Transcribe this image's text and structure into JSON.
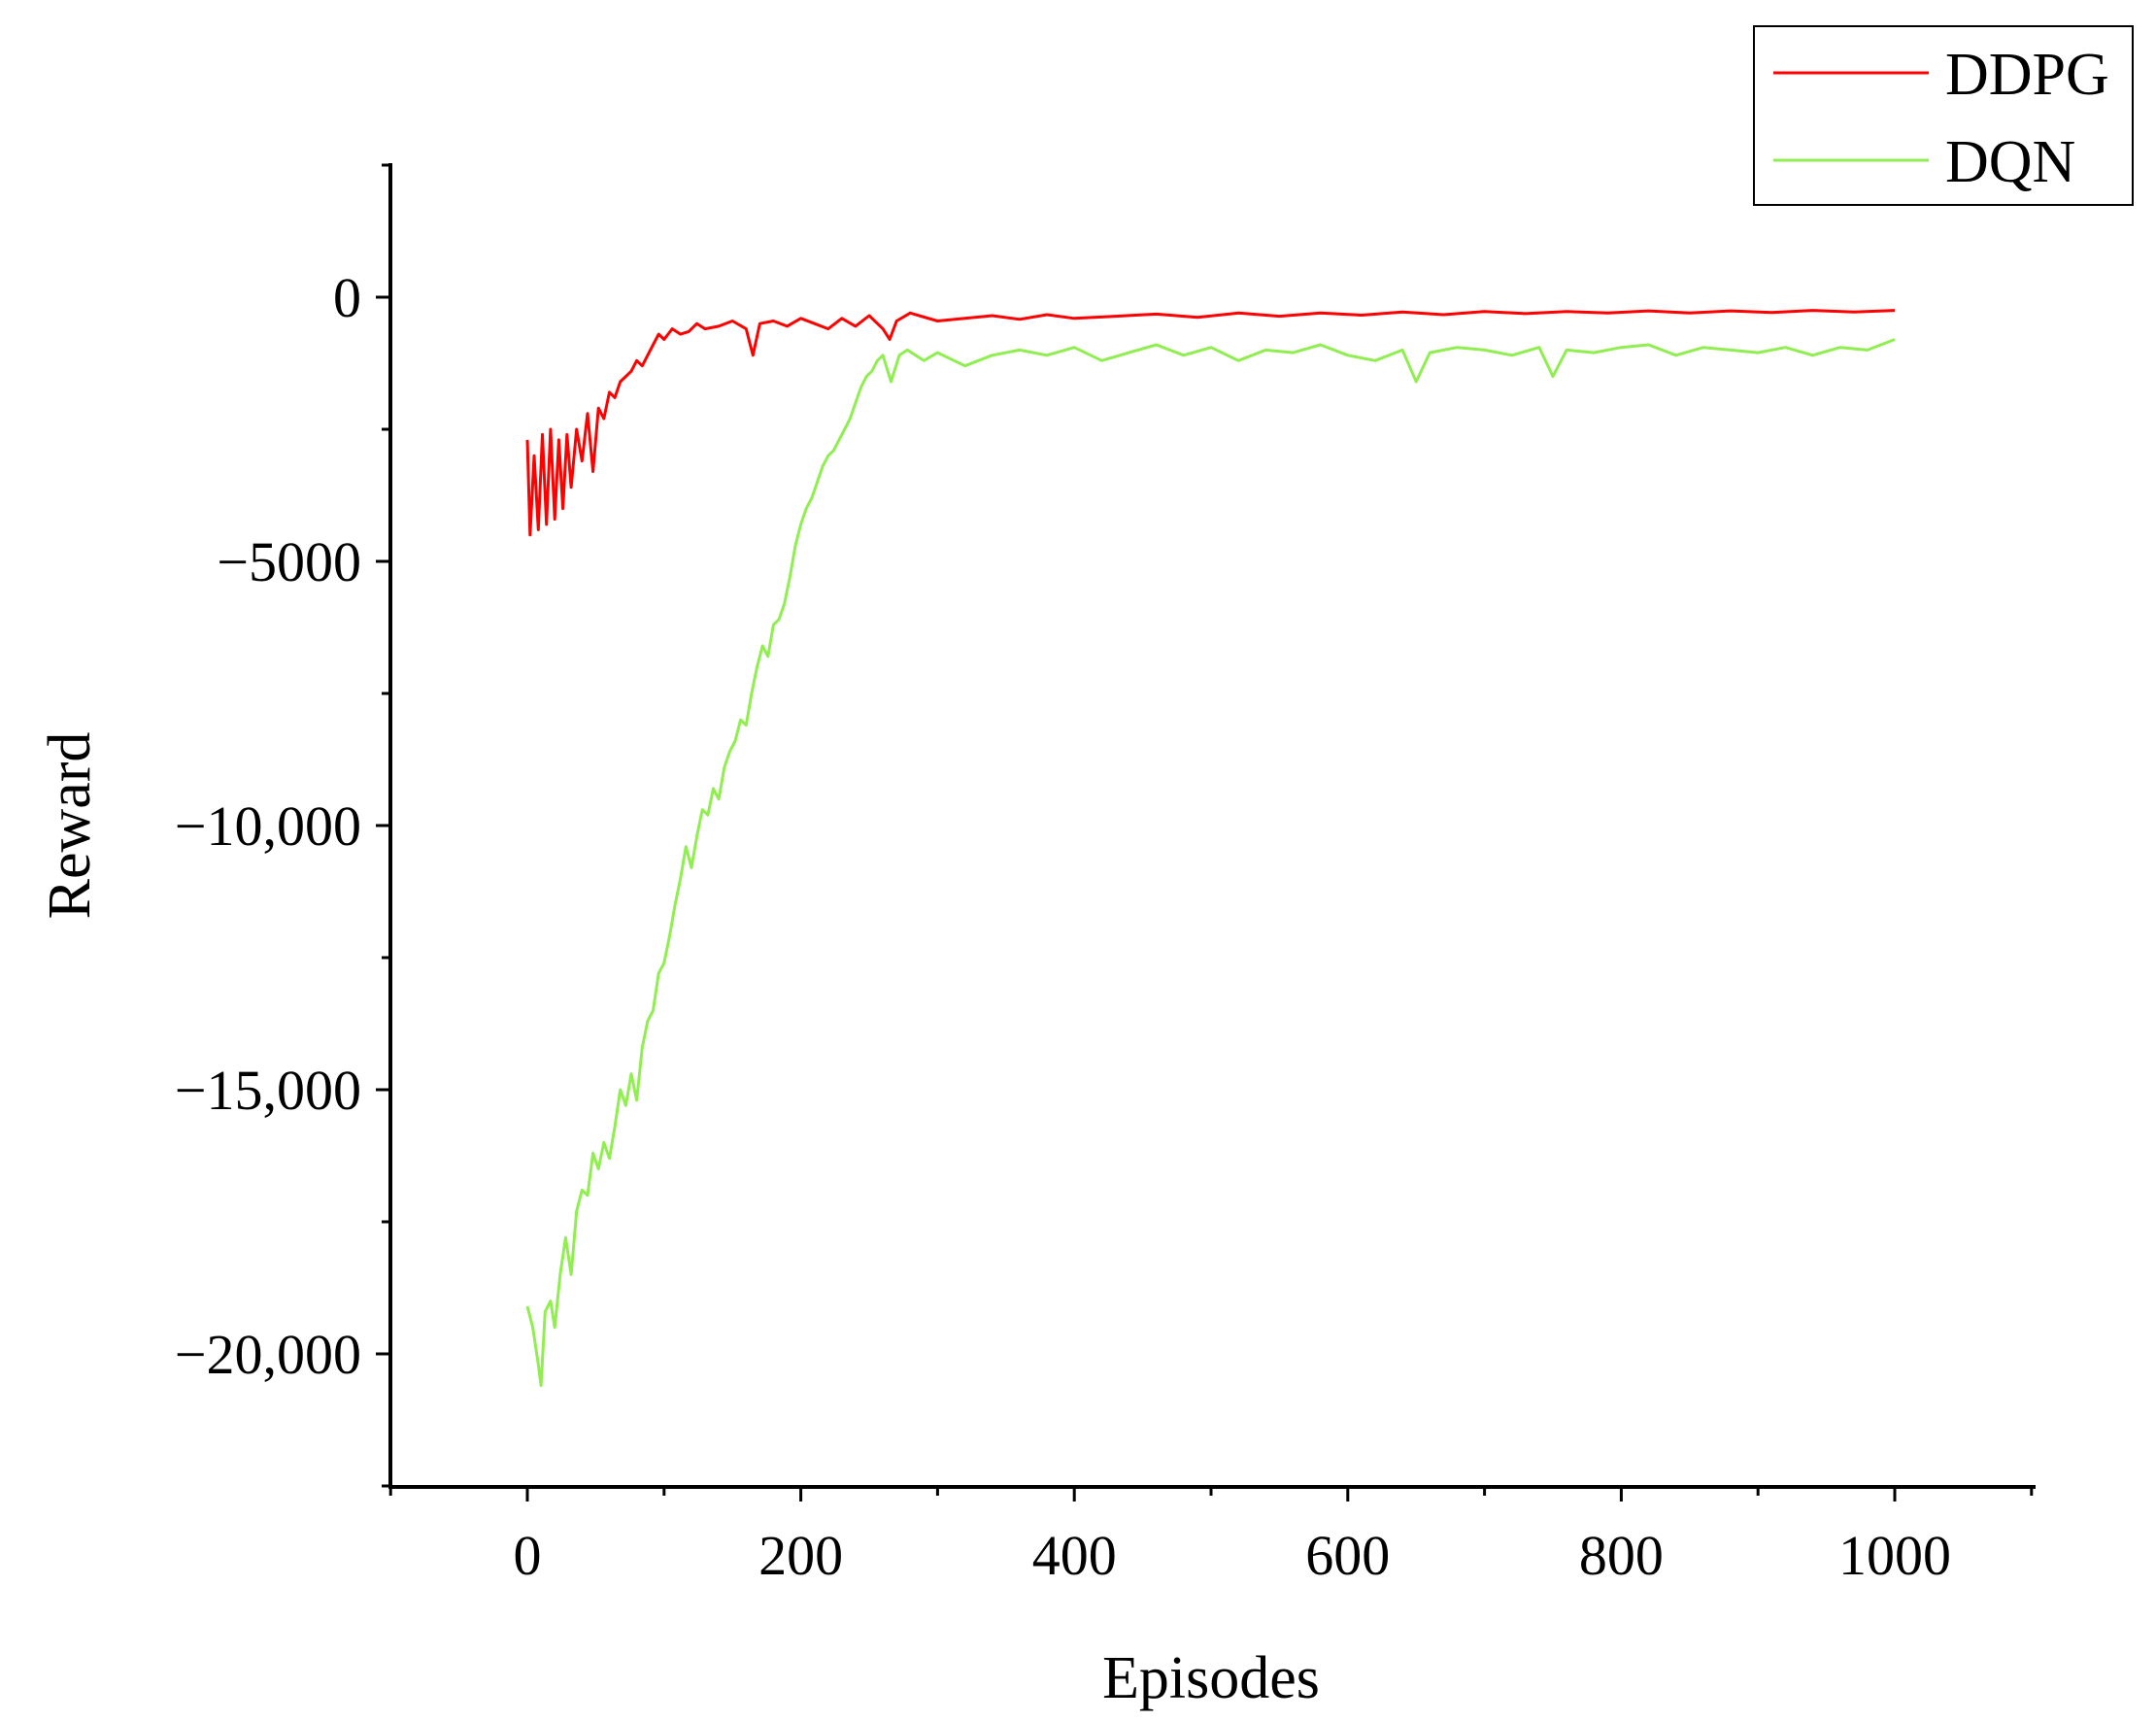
{
  "chart_data": {
    "type": "line",
    "xlabel": "Episodes",
    "ylabel": "Reward",
    "xlim": [
      -100,
      1100
    ],
    "ylim": [
      -22500,
      2500
    ],
    "x_ticks": [
      0,
      200,
      400,
      600,
      800,
      1000
    ],
    "x_tick_labels": [
      "0",
      "200",
      "400",
      "600",
      "800",
      "1000"
    ],
    "x_minor_ticks": [
      -100,
      100,
      300,
      500,
      700,
      900,
      1100
    ],
    "y_ticks": [
      0,
      -5000,
      -10000,
      -15000,
      -20000
    ],
    "y_tick_labels": [
      "0",
      "−5000",
      "−10,000",
      "−15,000",
      "−20,000"
    ],
    "y_minor_ticks": [
      2500,
      -2500,
      -7500,
      -12500,
      -17500,
      -22500
    ],
    "grid": false,
    "legend_position": "top-right",
    "series": [
      {
        "name": "DDPG",
        "color": "#ff0000",
        "points": [
          [
            0,
            -2700
          ],
          [
            2,
            -4500
          ],
          [
            5,
            -3000
          ],
          [
            8,
            -4400
          ],
          [
            11,
            -2600
          ],
          [
            14,
            -4300
          ],
          [
            17,
            -2500
          ],
          [
            20,
            -4200
          ],
          [
            23,
            -2700
          ],
          [
            26,
            -4000
          ],
          [
            29,
            -2600
          ],
          [
            32,
            -3600
          ],
          [
            36,
            -2500
          ],
          [
            40,
            -3100
          ],
          [
            44,
            -2200
          ],
          [
            48,
            -3300
          ],
          [
            52,
            -2100
          ],
          [
            56,
            -2300
          ],
          [
            60,
            -1800
          ],
          [
            64,
            -1900
          ],
          [
            68,
            -1600
          ],
          [
            72,
            -1500
          ],
          [
            76,
            -1400
          ],
          [
            80,
            -1200
          ],
          [
            84,
            -1300
          ],
          [
            88,
            -1100
          ],
          [
            92,
            -900
          ],
          [
            96,
            -700
          ],
          [
            100,
            -800
          ],
          [
            106,
            -600
          ],
          [
            112,
            -700
          ],
          [
            118,
            -650
          ],
          [
            124,
            -500
          ],
          [
            130,
            -600
          ],
          [
            140,
            -550
          ],
          [
            150,
            -450
          ],
          [
            160,
            -600
          ],
          [
            165,
            -1100
          ],
          [
            170,
            -500
          ],
          [
            180,
            -450
          ],
          [
            190,
            -550
          ],
          [
            200,
            -400
          ],
          [
            210,
            -500
          ],
          [
            220,
            -600
          ],
          [
            230,
            -400
          ],
          [
            240,
            -550
          ],
          [
            250,
            -350
          ],
          [
            260,
            -600
          ],
          [
            265,
            -800
          ],
          [
            270,
            -450
          ],
          [
            280,
            -300
          ],
          [
            300,
            -450
          ],
          [
            320,
            -400
          ],
          [
            340,
            -350
          ],
          [
            360,
            -420
          ],
          [
            380,
            -330
          ],
          [
            400,
            -400
          ],
          [
            430,
            -360
          ],
          [
            460,
            -320
          ],
          [
            490,
            -380
          ],
          [
            520,
            -300
          ],
          [
            550,
            -360
          ],
          [
            580,
            -300
          ],
          [
            610,
            -340
          ],
          [
            640,
            -280
          ],
          [
            670,
            -330
          ],
          [
            700,
            -270
          ],
          [
            730,
            -310
          ],
          [
            760,
            -270
          ],
          [
            790,
            -300
          ],
          [
            820,
            -260
          ],
          [
            850,
            -300
          ],
          [
            880,
            -260
          ],
          [
            910,
            -290
          ],
          [
            940,
            -250
          ],
          [
            970,
            -280
          ],
          [
            1000,
            -250
          ]
        ]
      },
      {
        "name": "DQN",
        "color": "#90ee50",
        "points": [
          [
            0,
            -19100
          ],
          [
            4,
            -19500
          ],
          [
            8,
            -20200
          ],
          [
            10,
            -20600
          ],
          [
            13,
            -19200
          ],
          [
            17,
            -19000
          ],
          [
            20,
            -19500
          ],
          [
            24,
            -18500
          ],
          [
            28,
            -17800
          ],
          [
            32,
            -18500
          ],
          [
            36,
            -17300
          ],
          [
            40,
            -16900
          ],
          [
            44,
            -17000
          ],
          [
            48,
            -16200
          ],
          [
            52,
            -16500
          ],
          [
            56,
            -16000
          ],
          [
            60,
            -16300
          ],
          [
            64,
            -15700
          ],
          [
            68,
            -15000
          ],
          [
            72,
            -15300
          ],
          [
            76,
            -14700
          ],
          [
            80,
            -15200
          ],
          [
            84,
            -14200
          ],
          [
            88,
            -13700
          ],
          [
            92,
            -13500
          ],
          [
            96,
            -12800
          ],
          [
            100,
            -12600
          ],
          [
            104,
            -12100
          ],
          [
            108,
            -11500
          ],
          [
            112,
            -11000
          ],
          [
            116,
            -10400
          ],
          [
            120,
            -10800
          ],
          [
            124,
            -10200
          ],
          [
            128,
            -9700
          ],
          [
            132,
            -9800
          ],
          [
            136,
            -9300
          ],
          [
            140,
            -9500
          ],
          [
            144,
            -8900
          ],
          [
            148,
            -8600
          ],
          [
            152,
            -8400
          ],
          [
            156,
            -8000
          ],
          [
            160,
            -8100
          ],
          [
            164,
            -7500
          ],
          [
            168,
            -7000
          ],
          [
            172,
            -6600
          ],
          [
            176,
            -6800
          ],
          [
            180,
            -6200
          ],
          [
            184,
            -6100
          ],
          [
            188,
            -5800
          ],
          [
            192,
            -5300
          ],
          [
            196,
            -4700
          ],
          [
            200,
            -4300
          ],
          [
            204,
            -4000
          ],
          [
            208,
            -3800
          ],
          [
            212,
            -3500
          ],
          [
            216,
            -3200
          ],
          [
            220,
            -3000
          ],
          [
            224,
            -2900
          ],
          [
            228,
            -2700
          ],
          [
            232,
            -2500
          ],
          [
            236,
            -2300
          ],
          [
            240,
            -2000
          ],
          [
            244,
            -1700
          ],
          [
            248,
            -1500
          ],
          [
            252,
            -1400
          ],
          [
            256,
            -1200
          ],
          [
            260,
            -1100
          ],
          [
            266,
            -1600
          ],
          [
            272,
            -1100
          ],
          [
            278,
            -1000
          ],
          [
            290,
            -1200
          ],
          [
            300,
            -1050
          ],
          [
            320,
            -1300
          ],
          [
            340,
            -1100
          ],
          [
            360,
            -1000
          ],
          [
            380,
            -1100
          ],
          [
            400,
            -950
          ],
          [
            420,
            -1200
          ],
          [
            440,
            -1050
          ],
          [
            460,
            -900
          ],
          [
            480,
            -1100
          ],
          [
            500,
            -950
          ],
          [
            520,
            -1200
          ],
          [
            540,
            -1000
          ],
          [
            560,
            -1050
          ],
          [
            580,
            -900
          ],
          [
            600,
            -1100
          ],
          [
            620,
            -1200
          ],
          [
            640,
            -1000
          ],
          [
            650,
            -1600
          ],
          [
            660,
            -1050
          ],
          [
            680,
            -950
          ],
          [
            700,
            -1000
          ],
          [
            720,
            -1100
          ],
          [
            740,
            -950
          ],
          [
            750,
            -1500
          ],
          [
            760,
            -1000
          ],
          [
            780,
            -1050
          ],
          [
            800,
            -950
          ],
          [
            820,
            -900
          ],
          [
            840,
            -1100
          ],
          [
            860,
            -950
          ],
          [
            880,
            -1000
          ],
          [
            900,
            -1050
          ],
          [
            920,
            -950
          ],
          [
            940,
            -1100
          ],
          [
            960,
            -950
          ],
          [
            980,
            -1000
          ],
          [
            1000,
            -800
          ]
        ]
      }
    ]
  }
}
